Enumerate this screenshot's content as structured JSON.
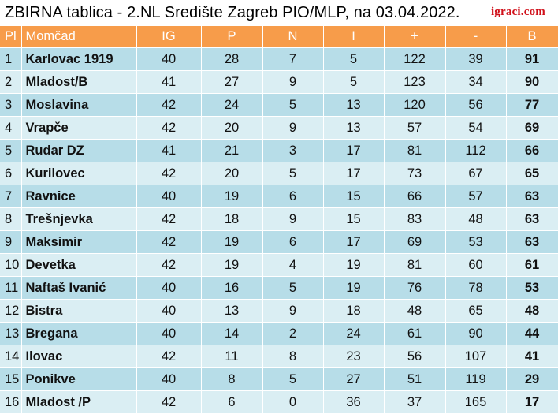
{
  "title": "ZBIRNA tablica - 2.NL Središte Zagreb PIO/MLP, na 03.04.2022.",
  "brand": "igraci.com",
  "headers": [
    "Pl",
    "Momčad",
    "IG",
    "P",
    "N",
    "I",
    "+",
    "-",
    "B"
  ],
  "rows": [
    [
      "1",
      "Karlovac 1919",
      "40",
      "28",
      "7",
      "5",
      "122",
      "39",
      "91"
    ],
    [
      "2",
      "Mladost/B",
      "41",
      "27",
      "9",
      "5",
      "123",
      "34",
      "90"
    ],
    [
      "3",
      "Moslavina",
      "42",
      "24",
      "5",
      "13",
      "120",
      "56",
      "77"
    ],
    [
      "4",
      "Vrapče",
      "42",
      "20",
      "9",
      "13",
      "57",
      "54",
      "69"
    ],
    [
      "5",
      "Rudar DZ",
      "41",
      "21",
      "3",
      "17",
      "81",
      "112",
      "66"
    ],
    [
      "6",
      "Kurilovec",
      "42",
      "20",
      "5",
      "17",
      "73",
      "67",
      "65"
    ],
    [
      "7",
      "Ravnice",
      "40",
      "19",
      "6",
      "15",
      "66",
      "57",
      "63"
    ],
    [
      "8",
      "Trešnjevka",
      "42",
      "18",
      "9",
      "15",
      "83",
      "48",
      "63"
    ],
    [
      "9",
      "Maksimir",
      "42",
      "19",
      "6",
      "17",
      "69",
      "53",
      "63"
    ],
    [
      "10",
      "Devetka",
      "42",
      "19",
      "4",
      "19",
      "81",
      "60",
      "61"
    ],
    [
      "11",
      "Naftaš Ivanić",
      "40",
      "16",
      "5",
      "19",
      "76",
      "78",
      "53"
    ],
    [
      "12",
      "Bistra",
      "40",
      "13",
      "9",
      "18",
      "48",
      "65",
      "48"
    ],
    [
      "13",
      "Bregana",
      "40",
      "14",
      "2",
      "24",
      "61",
      "90",
      "44"
    ],
    [
      "14",
      "Ilovac",
      "42",
      "11",
      "8",
      "23",
      "56",
      "107",
      "41"
    ],
    [
      "15",
      "Ponikve",
      "40",
      "8",
      "5",
      "27",
      "51",
      "119",
      "29"
    ],
    [
      "16",
      "Mladost /P",
      "42",
      "6",
      "0",
      "36",
      "37",
      "165",
      "17"
    ]
  ],
  "colors": {
    "header_bg": "#f79c4a",
    "row_odd": "#b7dde8",
    "row_even": "#daeef3",
    "brand": "#d0101a"
  }
}
